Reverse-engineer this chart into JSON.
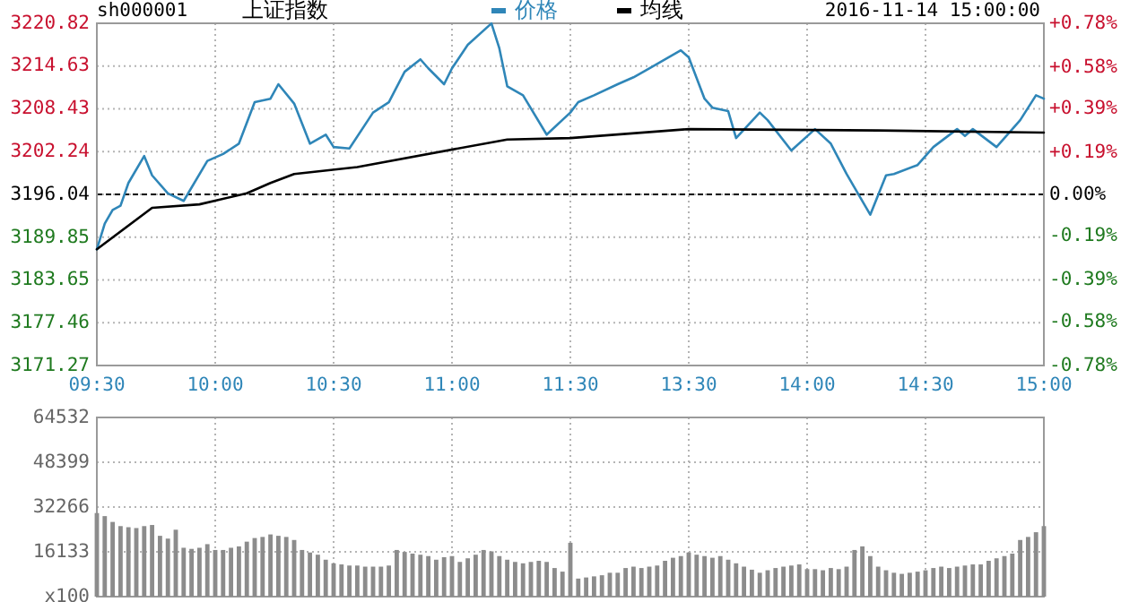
{
  "chart_data": [
    {
      "type": "line",
      "title": "上证指数",
      "subtitle": "sh000001",
      "annotations": [
        "2016-11-14 15:00:00"
      ],
      "legend": "top",
      "grid": true,
      "categories": [
        "09:30",
        null,
        null,
        null,
        null,
        null,
        null,
        null,
        null,
        null,
        null,
        null,
        null,
        null,
        null,
        "10:00",
        null,
        null,
        null,
        null,
        null,
        null,
        null,
        null,
        null,
        null,
        null,
        null,
        null,
        null,
        "10:30",
        null,
        null,
        null,
        null,
        null,
        null,
        null,
        null,
        null,
        null,
        null,
        null,
        null,
        null,
        "11:00",
        null,
        null,
        null,
        null,
        null,
        null,
        null,
        null,
        null,
        null,
        null,
        null,
        null,
        null,
        "11:30",
        null,
        null,
        null,
        null,
        null,
        null,
        null,
        null,
        null,
        null,
        null,
        null,
        null,
        null,
        "13:30",
        null,
        null,
        null,
        null,
        null,
        null,
        null,
        null,
        null,
        null,
        null,
        null,
        null,
        null,
        "14:00",
        null,
        null,
        null,
        null,
        null,
        null,
        null,
        null,
        null,
        null,
        null,
        null,
        null,
        null,
        "14:30",
        null,
        null,
        null,
        null,
        null,
        null,
        null,
        null,
        null,
        null,
        null,
        null,
        null,
        null,
        "15:00"
      ],
      "ylim": [
        3171.27,
        3220.82
      ],
      "yticks": [
        3171.27,
        3177.46,
        3183.65,
        3189.85,
        3196.04,
        3202.24,
        3208.43,
        3214.63,
        3220.82
      ],
      "y2lim": [
        -0.78,
        0.78
      ],
      "y2ticks": [
        {
          "value": 0.78,
          "label": "+0.78%"
        },
        {
          "value": 0.58,
          "label": "+0.58%"
        },
        {
          "value": 0.39,
          "label": "+0.39%"
        },
        {
          "value": 0.19,
          "label": "+0.19%"
        },
        {
          "value": 0,
          "label": "0.00%"
        },
        {
          "value": -0.19,
          "label": "-0.19%"
        },
        {
          "value": -0.39,
          "label": "-0.39%"
        },
        {
          "value": -0.58,
          "label": "-0.58%"
        },
        {
          "value": -0.78,
          "label": "-0.78%"
        }
      ],
      "ref_lines": [
        {
          "axis": "y",
          "value": 3196.04,
          "color": "#000000",
          "line_style": "dashed"
        }
      ],
      "series": [
        {
          "name": "价格",
          "color": "#2f86b8",
          "values": [
            3188.1,
            3191.8,
            3193.8,
            3194.4,
            3197.7,
            null,
            3201.6,
            3198.8,
            null,
            3196.2,
            null,
            3195.1,
            null,
            null,
            3200.9,
            null,
            3201.9,
            null,
            3203.4,
            null,
            3209.4,
            null,
            3209.9,
            3212.0,
            null,
            3209.2,
            null,
            3203.4,
            null,
            3204.7,
            3202.9,
            null,
            3202.7,
            null,
            null,
            3207.9,
            null,
            3209.4,
            null,
            3213.8,
            null,
            3215.6,
            3214.3,
            null,
            3212.0,
            3214.3,
            null,
            3217.7,
            null,
            null,
            3220.8,
            3217.2,
            3211.7,
            null,
            3210.4,
            null,
            null,
            3204.7,
            null,
            null,
            3207.9,
            3209.4,
            null,
            3210.4,
            null,
            null,
            3212.0,
            null,
            3213.0,
            null,
            3214.3,
            null,
            null,
            null,
            3216.9,
            3215.9,
            null,
            3209.9,
            3208.6,
            null,
            3208.1,
            3204.2,
            null,
            null,
            3207.9,
            3206.8,
            null,
            null,
            3202.4,
            null,
            null,
            3205.5,
            null,
            3203.4,
            null,
            3199.0,
            null,
            null,
            3193.1,
            null,
            3198.8,
            3199.0,
            null,
            null,
            3200.3,
            null,
            3202.9,
            null,
            null,
            3205.5,
            3204.5,
            3205.5,
            null,
            null,
            3202.9,
            null,
            null,
            3206.8,
            null,
            3210.4,
            3209.9
          ]
        },
        {
          "name": "均线",
          "color": "#000000",
          "values": [
            3188.1,
            null,
            null,
            null,
            null,
            null,
            null,
            3194.1,
            null,
            null,
            null,
            null,
            null,
            3194.6,
            null,
            null,
            null,
            null,
            null,
            3196.2,
            null,
            null,
            3197.7,
            null,
            null,
            3199.0,
            null,
            null,
            null,
            null,
            null,
            null,
            null,
            3200.0,
            null,
            null,
            null,
            null,
            null,
            null,
            null,
            null,
            null,
            null,
            null,
            null,
            null,
            null,
            null,
            null,
            null,
            null,
            3204.0,
            null,
            null,
            null,
            null,
            null,
            null,
            null,
            3204.2,
            null,
            null,
            null,
            null,
            null,
            null,
            null,
            null,
            null,
            null,
            null,
            null,
            null,
            null,
            3205.5,
            null,
            null,
            null,
            null,
            null,
            null,
            null,
            null,
            null,
            null,
            null,
            null,
            null,
            null,
            null,
            null,
            null,
            null,
            null,
            null,
            null,
            null,
            null,
            3205.3,
            null,
            null,
            null,
            null,
            null,
            null,
            null,
            null,
            null,
            null,
            null,
            null,
            null,
            null,
            null,
            null,
            null,
            null,
            null,
            null,
            3205.0
          ]
        }
      ]
    },
    {
      "type": "bar",
      "color": "#8c8c8c",
      "grid": true,
      "tick_labels": "y",
      "categories": [
        null,
        null,
        null,
        null,
        null,
        null,
        null,
        null,
        null,
        null,
        null,
        null,
        null,
        null,
        null,
        null,
        null,
        null,
        null,
        null,
        null,
        null,
        null,
        null,
        null,
        null,
        null,
        null,
        null,
        null,
        null,
        null,
        null,
        null,
        null,
        null,
        null,
        null,
        null,
        null,
        null,
        null,
        null,
        null,
        null,
        null,
        null,
        null,
        null,
        null,
        null,
        null,
        null,
        null,
        null,
        null,
        null,
        null,
        null,
        null,
        null,
        null,
        null,
        null,
        null,
        null,
        null,
        null,
        null,
        null,
        null,
        null,
        null,
        null,
        null,
        null,
        null,
        null,
        null,
        null,
        null,
        null,
        null,
        null,
        null,
        null,
        null,
        null,
        null,
        null,
        null,
        null,
        null,
        null,
        null,
        null,
        null,
        null,
        null,
        null,
        null,
        null,
        null,
        null,
        null,
        null,
        null,
        null,
        null,
        null,
        null,
        null,
        null,
        null,
        null,
        null,
        null,
        null,
        null,
        null,
        null
      ],
      "ylim": [
        0,
        64532
      ],
      "yticks": [
        {
          "value": 0,
          "label": "x100"
        },
        16133,
        32266,
        48399,
        64532
      ],
      "values": [
        30100,
        29000,
        26900,
        25400,
        25000,
        24700,
        25400,
        25800,
        21900,
        20900,
        24100,
        17600,
        17200,
        17600,
        18900,
        16800,
        16800,
        17600,
        18100,
        19800,
        21100,
        21500,
        22400,
        21900,
        21500,
        20400,
        16800,
        15900,
        15100,
        13300,
        12000,
        11600,
        11200,
        11200,
        10800,
        10800,
        10800,
        11200,
        16800,
        16100,
        15500,
        15100,
        14600,
        13300,
        14200,
        14600,
        12500,
        13800,
        15100,
        16800,
        16300,
        14600,
        13300,
        12500,
        12000,
        12500,
        12900,
        12500,
        10300,
        9000,
        19400,
        6500,
        6900,
        7300,
        7700,
        8600,
        8600,
        10300,
        10800,
        10300,
        10800,
        11200,
        12900,
        14000,
        14600,
        15900,
        15100,
        14600,
        14000,
        14600,
        13300,
        12000,
        10800,
        9700,
        8600,
        9500,
        10300,
        10800,
        11200,
        11600,
        9900,
        9900,
        9500,
        10300,
        9900,
        10800,
        16800,
        18100,
        14600,
        10800,
        9500,
        8600,
        8200,
        8600,
        9000,
        9500,
        10300,
        10800,
        10300,
        10800,
        11200,
        11600,
        11600,
        12900,
        13800,
        14600,
        15500,
        20400,
        21500,
        23200,
        25400
      ]
    }
  ]
}
